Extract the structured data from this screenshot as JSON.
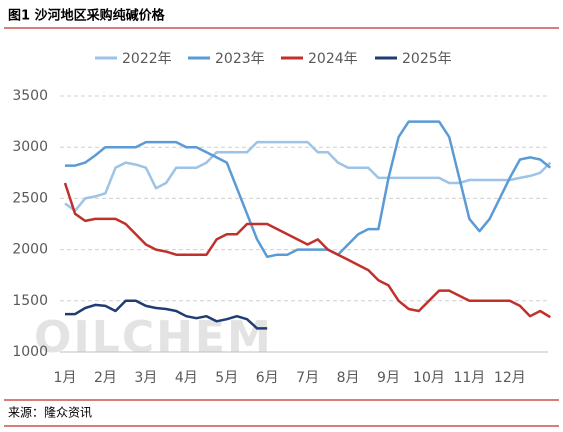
{
  "chart_data": {
    "type": "line",
    "title": "图1  沙河地区采购纯碱价格",
    "source": "来源：隆众资讯",
    "watermark": "OILCHEM",
    "categories": [
      "1月",
      null,
      null,
      null,
      "2月",
      null,
      null,
      null,
      "3月",
      null,
      null,
      null,
      "4月",
      null,
      null,
      null,
      "5月",
      null,
      null,
      null,
      "6月",
      null,
      null,
      null,
      "7月",
      null,
      null,
      null,
      "8月",
      null,
      null,
      null,
      "9月",
      null,
      null,
      null,
      "10月",
      null,
      null,
      null,
      "11月",
      null,
      null,
      null,
      "12月",
      null,
      null,
      null,
      null
    ],
    "ylim": [
      1000,
      3500
    ],
    "yticks": [
      1000,
      1500,
      2000,
      2500,
      3000,
      3500
    ],
    "grid": true,
    "series": [
      {
        "name": "2022年",
        "color": "#9dc3e6",
        "values": [
          2450,
          2380,
          2500,
          2520,
          2550,
          2800,
          2850,
          2830,
          2800,
          2600,
          2650,
          2800,
          2800,
          2800,
          2850,
          2950,
          2950,
          2950,
          2950,
          3050,
          3050,
          3050,
          3050,
          3050,
          3050,
          2950,
          2950,
          2850,
          2800,
          2800,
          2800,
          2700,
          2700,
          2700,
          2700,
          2700,
          2700,
          2700,
          2650,
          2650,
          2680,
          2680,
          2680,
          2680,
          2680,
          2700,
          2720,
          2750,
          2850
        ]
      },
      {
        "name": "2023年",
        "color": "#5b9bd5",
        "values": [
          2820,
          2820,
          2850,
          2920,
          3000,
          3000,
          3000,
          3000,
          3050,
          3050,
          3050,
          3050,
          3000,
          3000,
          2950,
          2900,
          2850,
          2600,
          2350,
          2100,
          1930,
          1950,
          1950,
          2000,
          2000,
          2000,
          2000,
          1950,
          2050,
          2150,
          2200,
          2200,
          2700,
          3100,
          3250,
          3250,
          3250,
          3250,
          3100,
          2700,
          2300,
          2180,
          2300,
          2500,
          2700,
          2880,
          2900,
          2880,
          2800
        ]
      },
      {
        "name": "2024年",
        "color": "#c0312b",
        "values": [
          2650,
          2350,
          2280,
          2300,
          2300,
          2300,
          2250,
          2150,
          2050,
          2000,
          1980,
          1950,
          1950,
          1950,
          1950,
          2100,
          2150,
          2150,
          2250,
          2250,
          2250,
          2200,
          2150,
          2100,
          2050,
          2100,
          2000,
          1950,
          1900,
          1850,
          1800,
          1700,
          1650,
          1500,
          1420,
          1400,
          1500,
          1600,
          1600,
          1550,
          1500,
          1500,
          1500,
          1500,
          1500,
          1450,
          1350,
          1400,
          1340
        ]
      },
      {
        "name": "2025年",
        "color": "#1f3d73",
        "values": [
          1370,
          1370,
          1430,
          1460,
          1450,
          1400,
          1500,
          1500,
          1450,
          1430,
          1420,
          1400,
          1350,
          1330,
          1350,
          1300,
          1320,
          1350,
          1320,
          1230,
          1230,
          null,
          null,
          null,
          null,
          null,
          null,
          null,
          null,
          null,
          null,
          null,
          null,
          null,
          null,
          null,
          null,
          null,
          null,
          null,
          null,
          null,
          null,
          null,
          null,
          null,
          null,
          null,
          null
        ]
      }
    ]
  }
}
